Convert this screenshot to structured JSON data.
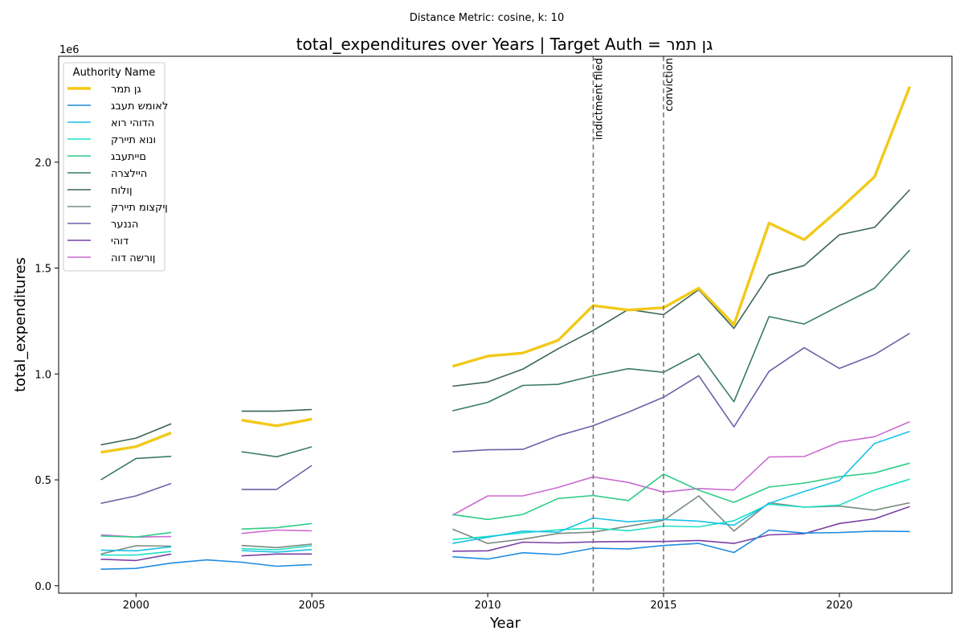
{
  "suptitle": "Distance Metric: cosine, k: 10",
  "chart_data": {
    "type": "line",
    "title": "total_expenditures over Years | Target Auth = גן תמר",
    "xlabel": "Year",
    "ylabel": "total_expenditures",
    "y_offset_label": "1e6",
    "xlim": [
      1997.8,
      2023.2
    ],
    "ylim": [
      -0.035,
      2.5
    ],
    "x_ticks": [
      2000,
      2005,
      2010,
      2015,
      2020
    ],
    "x_tick_labels": [
      "2000",
      "2005",
      "2010",
      "2015",
      "2020"
    ],
    "y_ticks": [
      0.0,
      0.5,
      1.0,
      1.5,
      2.0
    ],
    "y_tick_labels": [
      "0.0",
      "0.5",
      "1.0",
      "1.5",
      "2.0"
    ],
    "grid": false,
    "legend": {
      "title": "Authority Name",
      "placement": "top-left"
    },
    "x": [
      1999,
      2000,
      2001,
      2002,
      2003,
      2004,
      2005,
      2006,
      2007,
      2008,
      2009,
      2010,
      2011,
      2012,
      2013,
      2014,
      2015,
      2016,
      2017,
      2018,
      2019,
      2020,
      2021,
      2022
    ],
    "series": [
      {
        "name": "גן תמר",
        "color": "#f2c919",
        "width": 3.4,
        "values": [
          0.63,
          0.657,
          0.722,
          null,
          0.782,
          0.755,
          0.787,
          null,
          null,
          null,
          1.036,
          1.084,
          1.099,
          1.159,
          1.323,
          1.302,
          1.313,
          1.405,
          1.233,
          1.712,
          1.634,
          1.778,
          1.931,
          2.357
        ]
      },
      {
        "name": "לאומש תעבג",
        "color": "#1f8ce0",
        "width": 1.6,
        "values": [
          0.078,
          0.082,
          0.107,
          0.122,
          0.111,
          0.092,
          0.1,
          null,
          null,
          null,
          0.137,
          0.126,
          0.156,
          0.147,
          0.177,
          0.174,
          0.19,
          0.2,
          0.157,
          0.263,
          0.249,
          0.251,
          0.258,
          0.256
        ]
      },
      {
        "name": "הדוהי רוא",
        "color": "#1ac2e6",
        "width": 1.6,
        "values": [
          0.168,
          0.165,
          0.184,
          null,
          0.166,
          0.159,
          0.171,
          null,
          null,
          null,
          0.2,
          0.229,
          0.258,
          0.253,
          0.32,
          0.302,
          0.313,
          0.305,
          0.286,
          0.389,
          0.445,
          0.497,
          0.672,
          0.729
        ]
      },
      {
        "name": "ונוא תיירק",
        "color": "#1de0c4",
        "width": 1.6,
        "values": [
          0.145,
          0.145,
          0.162,
          null,
          0.175,
          0.17,
          0.189,
          null,
          null,
          null,
          0.218,
          0.233,
          0.25,
          0.264,
          0.272,
          0.26,
          0.282,
          0.278,
          0.307,
          0.385,
          0.371,
          0.381,
          0.452,
          0.503
        ]
      },
      {
        "name": "םייתעבג",
        "color": "#2fcc88",
        "width": 1.6,
        "values": [
          0.235,
          0.23,
          0.252,
          null,
          0.268,
          0.274,
          0.294,
          null,
          null,
          null,
          0.336,
          0.313,
          0.337,
          0.412,
          0.426,
          0.402,
          0.527,
          0.451,
          0.394,
          0.466,
          0.485,
          0.515,
          0.533,
          0.579
        ]
      },
      {
        "name": "היילצרה",
        "color": "#3a7a6c",
        "width": 1.6,
        "values": [
          0.5,
          0.601,
          0.611,
          null,
          0.633,
          0.609,
          0.656,
          null,
          null,
          null,
          0.826,
          0.866,
          0.946,
          0.951,
          0.991,
          1.025,
          1.008,
          1.096,
          0.869,
          1.271,
          1.236,
          1.322,
          1.405,
          1.585
        ]
      },
      {
        "name": "ןולוח",
        "color": "#3a6656",
        "width": 1.6,
        "values": [
          0.665,
          0.697,
          0.765,
          null,
          0.824,
          0.824,
          0.832,
          null,
          null,
          null,
          0.942,
          0.962,
          1.023,
          1.119,
          1.205,
          1.305,
          1.28,
          1.398,
          1.215,
          1.467,
          1.512,
          1.657,
          1.692,
          1.87
        ]
      },
      {
        "name": "ןיקצומ תיירק",
        "color": "#7a8a80",
        "width": 1.6,
        "values": [
          0.15,
          0.189,
          0.187,
          null,
          0.19,
          0.18,
          0.197,
          null,
          null,
          null,
          0.267,
          0.2,
          0.22,
          0.247,
          0.253,
          0.281,
          0.309,
          0.424,
          0.258,
          0.392,
          0.371,
          0.376,
          0.357,
          0.392
        ]
      },
      {
        "name": "הננער",
        "color": "#6a63a8",
        "width": 1.6,
        "values": [
          0.389,
          0.424,
          0.483,
          null,
          0.455,
          0.455,
          0.568,
          null,
          null,
          null,
          0.632,
          0.642,
          0.644,
          0.708,
          0.756,
          0.82,
          0.89,
          0.992,
          0.75,
          1.012,
          1.124,
          1.026,
          1.091,
          1.192
        ]
      },
      {
        "name": "דוהי",
        "color": "#7c3fa6",
        "width": 1.6,
        "values": [
          0.125,
          0.119,
          0.15,
          null,
          0.141,
          0.15,
          0.15,
          null,
          null,
          null,
          0.163,
          0.165,
          0.206,
          0.202,
          0.207,
          0.209,
          0.209,
          0.214,
          0.2,
          0.24,
          0.246,
          0.294,
          0.316,
          0.374
        ]
      },
      {
        "name": "ןורשה דוה",
        "color": "#cc6ad0",
        "width": 1.6,
        "values": [
          0.24,
          0.23,
          0.232,
          null,
          0.247,
          0.263,
          0.259,
          null,
          null,
          null,
          0.333,
          0.424,
          0.424,
          0.464,
          0.514,
          0.488,
          0.442,
          0.459,
          0.452,
          0.608,
          0.61,
          0.679,
          0.704,
          0.775
        ]
      }
    ],
    "annotations": [
      {
        "x": 2013,
        "label": "indictment filed"
      },
      {
        "x": 2015,
        "label": "conviction"
      }
    ]
  }
}
